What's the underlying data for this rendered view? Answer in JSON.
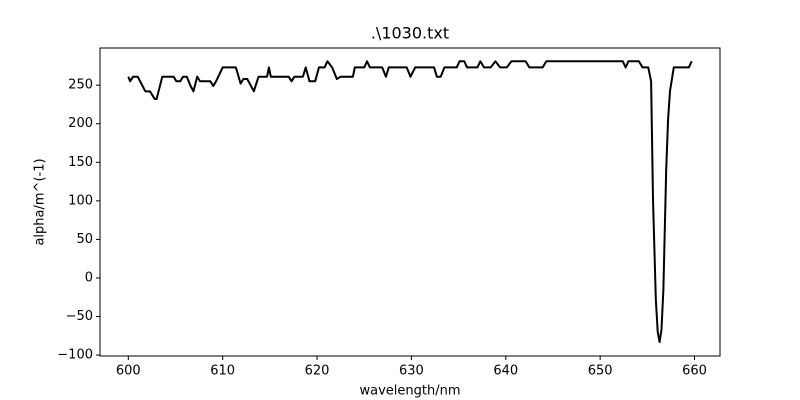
{
  "chart_data": {
    "type": "line",
    "title": ".\\1030.txt",
    "xlabel": "wavelength/nm",
    "ylabel": "alpha/m^(-1)",
    "x": [
      600,
      600.2,
      600.5,
      601,
      601.8,
      602.3,
      602.8,
      603,
      603.6,
      604.8,
      605.1,
      605.5,
      605.8,
      606.2,
      606.6,
      606.9,
      607.3,
      607.6,
      608.7,
      609,
      609.3,
      610,
      611.4,
      611.9,
      612.2,
      612.6,
      613.3,
      613.8,
      614.7,
      614.9,
      615.1,
      617,
      617.3,
      617.6,
      618.5,
      618.8,
      619.2,
      619.8,
      620.2,
      620.8,
      621.1,
      621.6,
      622.1,
      622.5,
      623.8,
      624,
      625,
      625.3,
      625.6,
      626.9,
      627.3,
      627.6,
      629.5,
      629.9,
      630.4,
      632.4,
      632.7,
      633.1,
      633.5,
      634.8,
      635.1,
      635.6,
      635.9,
      637,
      637.3,
      637.7,
      638.4,
      638.9,
      639.4,
      640.1,
      640.6,
      642.1,
      642.5,
      643.9,
      644.3,
      652.4,
      652.7,
      653,
      654.1,
      654.5,
      655.1,
      655.4,
      655.6,
      655.9,
      656.1,
      656.3,
      656.5,
      656.7,
      657,
      657.2,
      657.4,
      657.8,
      659.4,
      659.7
    ],
    "series": [
      {
        "color": "#000000",
        "values": [
          261,
          255,
          261,
          261,
          242,
          242,
          232,
          232,
          261,
          261,
          255,
          255,
          261,
          261,
          249,
          242,
          261,
          255,
          255,
          249,
          255,
          273,
          273,
          252,
          258,
          258,
          242,
          261,
          261,
          273,
          261,
          261,
          255,
          261,
          261,
          273,
          255,
          255,
          273,
          273,
          281,
          273,
          258,
          261,
          261,
          273,
          273,
          281,
          273,
          273,
          261,
          273,
          273,
          261,
          273,
          273,
          261,
          261,
          273,
          273,
          281,
          281,
          273,
          273,
          281,
          273,
          273,
          281,
          273,
          273,
          281,
          281,
          273,
          273,
          281,
          281,
          273,
          281,
          281,
          273,
          273,
          255,
          102,
          -28,
          -70,
          -83,
          -67,
          -15,
          141,
          206,
          242,
          273,
          273,
          281
        ]
      }
    ],
    "xlim": [
      597.0,
      662.7
    ],
    "ylim": [
      -101.2,
      298.2
    ],
    "xticks": [
      600,
      610,
      620,
      630,
      640,
      650,
      660
    ],
    "yticks": [
      {
        "value": -100,
        "label": "−100"
      },
      {
        "value": -50,
        "label": "−50"
      },
      0,
      50,
      100,
      150,
      200,
      250
    ]
  }
}
